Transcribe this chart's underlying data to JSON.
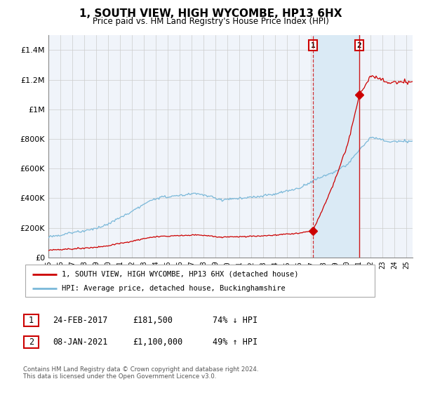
{
  "title": "1, SOUTH VIEW, HIGH WYCOMBE, HP13 6HX",
  "subtitle": "Price paid vs. HM Land Registry's House Price Index (HPI)",
  "xlim_start": 1995.0,
  "xlim_end": 2025.5,
  "ylim": [
    0,
    1500000
  ],
  "yticks": [
    0,
    200000,
    400000,
    600000,
    800000,
    1000000,
    1200000,
    1400000
  ],
  "ytick_labels": [
    "£0",
    "£200K",
    "£400K",
    "£600K",
    "£800K",
    "£1M",
    "£1.2M",
    "£1.4M"
  ],
  "transaction1_date": 2017.15,
  "transaction1_price": 181500,
  "transaction2_date": 2021.03,
  "transaction2_price": 1100000,
  "hpi_color": "#7ab8d9",
  "price_color": "#cc0000",
  "shade_color": "#daeaf5",
  "grid_color": "#cccccc",
  "bg_color": "#f0f4fa",
  "legend1": "1, SOUTH VIEW, HIGH WYCOMBE, HP13 6HX (detached house)",
  "legend2": "HPI: Average price, detached house, Buckinghamshire",
  "table_row1": [
    "1",
    "24-FEB-2017",
    "£181,500",
    "74% ↓ HPI"
  ],
  "table_row2": [
    "2",
    "08-JAN-2021",
    "£1,100,000",
    "49% ↑ HPI"
  ],
  "footnote": "Contains HM Land Registry data © Crown copyright and database right 2024.\nThis data is licensed under the Open Government Licence v3.0."
}
